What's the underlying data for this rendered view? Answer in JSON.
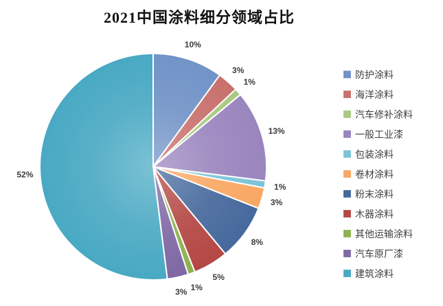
{
  "title": "2021中国涂料细分领域占比",
  "chart_data": {
    "type": "pie",
    "title": "2021中国涂料细分领域占比",
    "legend_position": "right",
    "start_angle_deg": 0,
    "direction": "clockwise",
    "background": "#FFFFFF",
    "data_label_color": "#3B3B3B",
    "legend_text_color": "#3F3F3F",
    "slices": [
      {
        "label": "防护涂料",
        "value_pct": 10,
        "data_label": "10%",
        "color": "#7193C7"
      },
      {
        "label": "海洋涂料",
        "value_pct": 3,
        "data_label": "3%",
        "color": "#C8706C"
      },
      {
        "label": "汽车修补涂料",
        "value_pct": 1,
        "data_label": "1%",
        "color": "#A9C981"
      },
      {
        "label": "一般工业漆",
        "value_pct": 13,
        "data_label": "13%",
        "color": "#9A85BE"
      },
      {
        "label": "包装涂料",
        "value_pct": 1,
        "data_label": "1%",
        "color": "#7BC3D7"
      },
      {
        "label": "卷材涂料",
        "value_pct": 3,
        "data_label": "3%",
        "color": "#F9A763"
      },
      {
        "label": "粉末涂料",
        "value_pct": 8,
        "data_label": "8%",
        "color": "#46699C"
      },
      {
        "label": "木器涂料",
        "value_pct": 5,
        "data_label": "5%",
        "color": "#B44743"
      },
      {
        "label": "其他运输涂料",
        "value_pct": 1,
        "data_label": "1%",
        "color": "#8DB24F"
      },
      {
        "label": "汽车原厂漆",
        "value_pct": 3,
        "data_label": "3%",
        "color": "#7F68A4"
      },
      {
        "label": "建筑涂料",
        "value_pct": 52,
        "data_label": "52%",
        "color": "#49A9C3"
      }
    ]
  }
}
